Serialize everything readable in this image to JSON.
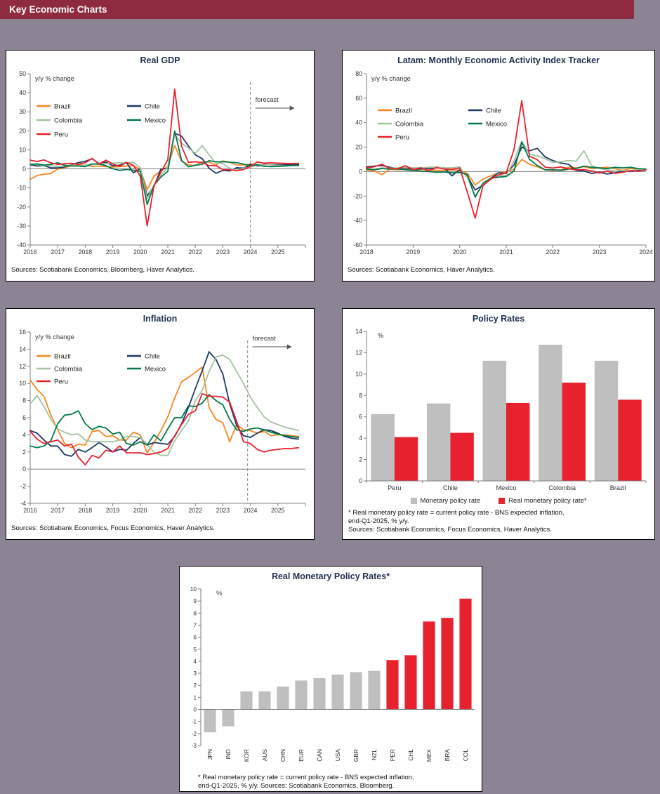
{
  "page": {
    "header_title": "Key Economic Charts",
    "header_color": "#8E2B40",
    "background_color": "#8C8494"
  },
  "colors": {
    "brazil": "#F6871F",
    "chile": "#1F3864",
    "colombia": "#A4C3A0",
    "mexico": "#00794A",
    "peru": "#E8212E",
    "gray_bar": "#BFBFBF",
    "red_bar": "#E8212E",
    "title_text": "#1F3050"
  },
  "chart_data": [
    {
      "id": "real-gdp",
      "type": "line",
      "title": "Real GDP",
      "unit_label": "y/y % change",
      "sources": "Sources: Scotiabank Economics, Bloomberg, Haver Analytics.",
      "forecast_label": "forecast",
      "forecast_x": 2024.0,
      "x_min": 2016,
      "x_max": 2026,
      "x_start": 2016.0,
      "x_step": 0.25,
      "y_min": -40,
      "y_max": 50,
      "y_step": 10,
      "x_ticks": [
        2016,
        2017,
        2018,
        2019,
        2020,
        2021,
        2022,
        2023,
        2024,
        2025,
        2026
      ],
      "x_tick_labels": [
        "2016",
        "2017",
        "2018",
        "2019",
        "2020",
        "2021",
        "2022",
        "2023",
        "2024",
        "2025"
      ],
      "series": [
        {
          "name": "Brazil",
          "color_key": "brazil",
          "values": [
            -5.5,
            -3.5,
            -2.8,
            -2.5,
            0.0,
            0.7,
            1.5,
            2.2,
            1.8,
            1.3,
            1.5,
            1.2,
            1.0,
            1.2,
            1.5,
            1.7,
            -0.3,
            -10.9,
            -3.7,
            -1.1,
            1.3,
            12.3,
            4.0,
            2.1,
            1.7,
            3.7,
            3.6,
            1.9,
            4.2,
            3.5,
            2.0,
            2.1,
            2.5,
            1.9,
            2.2,
            2.3,
            2.2,
            2.1,
            2.0,
            2.0
          ]
        },
        {
          "name": "Chile",
          "color_key": "chile",
          "values": [
            2.2,
            1.5,
            1.7,
            0.5,
            0.5,
            1.0,
            2.2,
            3.3,
            4.0,
            5.3,
            2.8,
            3.6,
            1.6,
            1.9,
            3.3,
            -2.1,
            0.2,
            -14.2,
            -9.0,
            0.0,
            0.3,
            18.7,
            17.2,
            12.0,
            7.4,
            5.4,
            0.3,
            -2.3,
            -0.8,
            -1.1,
            0.6,
            0.4,
            2.3,
            1.6,
            2.3,
            2.2,
            2.2,
            2.3,
            2.2,
            2.2
          ]
        },
        {
          "name": "Colombia",
          "color_key": "colombia",
          "values": [
            2.5,
            2.3,
            1.8,
            1.6,
            1.2,
            1.5,
            2.0,
            1.5,
            1.9,
            2.5,
            2.7,
            2.7,
            3.0,
            3.2,
            3.3,
            3.4,
            0.7,
            -15.8,
            -8.4,
            -3.4,
            1.0,
            18.1,
            13.5,
            11.0,
            8.2,
            12.2,
            7.4,
            2.9,
            2.9,
            0.3,
            -0.7,
            0.3,
            0.9,
            2.1,
            2.0,
            2.3,
            2.6,
            2.8,
            2.9,
            3.0
          ]
        },
        {
          "name": "Mexico",
          "color_key": "mexico",
          "values": [
            2.3,
            2.6,
            2.0,
            2.3,
            3.2,
            1.9,
            1.5,
            1.5,
            1.2,
            2.6,
            2.5,
            1.7,
            0.1,
            -0.8,
            -0.3,
            -0.7,
            -1.3,
            -18.7,
            -8.5,
            -4.3,
            -1.3,
            19.9,
            4.5,
            1.1,
            1.9,
            2.4,
            4.3,
            3.7,
            3.8,
            3.5,
            3.3,
            2.5,
            1.6,
            2.2,
            1.3,
            1.2,
            1.3,
            1.5,
            1.7,
            1.8
          ]
        },
        {
          "name": "Peru",
          "color_key": "peru",
          "values": [
            4.6,
            3.9,
            4.7,
            3.2,
            2.3,
            2.7,
            2.9,
            2.4,
            3.2,
            5.5,
            2.5,
            4.6,
            2.6,
            1.3,
            3.4,
            1.9,
            -3.9,
            -29.9,
            -8.8,
            -1.7,
            4.8,
            41.9,
            11.9,
            3.4,
            3.8,
            3.3,
            1.7,
            1.7,
            -0.4,
            -0.5,
            -0.9,
            -0.4,
            1.4,
            3.6,
            3.0,
            3.2,
            3.0,
            2.9,
            2.8,
            2.8
          ]
        }
      ]
    },
    {
      "id": "latam-activity",
      "type": "line",
      "title": "Latam: Monthly Economic Activity Index Tracker",
      "unit_label": "y/y % change",
      "sources": "Sources: Scotiabank Economics, Haver Analytics.",
      "x_min": 2018,
      "x_max": 2024,
      "x_start": 2018.0,
      "x_step": 0.16667,
      "y_min": -60,
      "y_max": 80,
      "y_step": 20,
      "x_ticks": [
        2018,
        2019,
        2020,
        2021,
        2022,
        2023,
        2024
      ],
      "x_tick_labels": [
        "2018",
        "2019",
        "2020",
        "2021",
        "2022",
        "2023",
        "2024"
      ],
      "series": [
        {
          "name": "Brazil",
          "color_key": "brazil",
          "values": [
            1.5,
            0.5,
            -2.5,
            2.0,
            1.5,
            2.0,
            1.0,
            2.0,
            1.5,
            1.0,
            1.0,
            1.5,
            1.0,
            -1.5,
            -11.0,
            -6.0,
            -3.5,
            -1.0,
            -0.5,
            2.0,
            10.0,
            6.0,
            4.0,
            1.5,
            1.0,
            1.5,
            3.5,
            3.0,
            4.0,
            2.5,
            3.0,
            3.5,
            2.5,
            1.0,
            2.5,
            2.0,
            1.5
          ]
        },
        {
          "name": "Chile",
          "color_key": "chile",
          "values": [
            3.8,
            4.5,
            5.0,
            3.5,
            2.5,
            3.0,
            2.0,
            2.2,
            2.5,
            3.0,
            3.2,
            -3.5,
            1.5,
            -4.0,
            -15.0,
            -11.0,
            -5.5,
            -1.0,
            -1.5,
            5.5,
            20.0,
            17.0,
            19.0,
            12.0,
            9.0,
            7.0,
            6.0,
            1.0,
            0.5,
            -1.5,
            -0.5,
            -2.0,
            -1.0,
            0.5,
            0.0,
            1.0,
            2.0
          ]
        },
        {
          "name": "Colombia",
          "color_key": "colombia",
          "values": [
            2.5,
            2.0,
            3.0,
            2.8,
            3.0,
            3.5,
            3.2,
            3.0,
            3.5,
            3.8,
            3.0,
            3.2,
            3.8,
            -5.0,
            -20.0,
            -10.0,
            -6.0,
            -3.0,
            -3.5,
            9.0,
            25.0,
            14.0,
            13.0,
            10.5,
            7.5,
            8.0,
            9.0,
            8.5,
            17.0,
            5.0,
            2.5,
            1.5,
            0.5,
            1.0,
            0.5,
            2.0,
            1.5
          ]
        },
        {
          "name": "Mexico",
          "color_key": "mexico",
          "values": [
            2.0,
            1.5,
            2.5,
            2.0,
            2.2,
            1.5,
            1.0,
            0.5,
            0.0,
            -0.5,
            -0.3,
            -1.0,
            -0.8,
            -2.5,
            -21.0,
            -9.5,
            -5.5,
            -4.5,
            -4.0,
            0.5,
            24.0,
            10.0,
            5.0,
            1.5,
            1.5,
            1.0,
            2.0,
            2.5,
            4.5,
            3.5,
            3.0,
            2.5,
            3.5,
            3.0,
            3.5,
            2.5,
            2.0
          ]
        },
        {
          "name": "Peru",
          "color_key": "peru",
          "values": [
            3.0,
            4.0,
            6.0,
            2.5,
            2.3,
            4.8,
            1.6,
            3.2,
            0.5,
            3.3,
            2.2,
            1.9,
            3.0,
            -17.0,
            -38.0,
            -11.5,
            -6.2,
            -2.8,
            -1.0,
            18.0,
            58.0,
            12.5,
            9.7,
            3.7,
            2.9,
            3.8,
            2.3,
            1.4,
            1.7,
            0.6,
            -1.2,
            0.3,
            -1.4,
            -0.6,
            0.8,
            0.3,
            1.4
          ]
        }
      ]
    },
    {
      "id": "inflation",
      "type": "line",
      "title": "Inflation",
      "unit_label": "y/y % change",
      "sources": "Sources: Scotiabank Economics, Focus Economics, Haver Analytics.",
      "forecast_label": "forecast",
      "forecast_x": 2023.9,
      "x_min": 2016,
      "x_max": 2026,
      "x_start": 2016.0,
      "x_step": 0.25,
      "y_min": -4,
      "y_max": 16,
      "y_step": 2,
      "x_ticks": [
        2016,
        2017,
        2018,
        2019,
        2020,
        2021,
        2022,
        2023,
        2024,
        2025,
        2026
      ],
      "x_tick_labels": [
        "2016",
        "2017",
        "2018",
        "2019",
        "2020",
        "2021",
        "2022",
        "2023",
        "2024",
        "2025"
      ],
      "series": [
        {
          "name": "Brazil",
          "color_key": "brazil",
          "values": [
            10.4,
            9.3,
            8.5,
            6.3,
            4.6,
            3.0,
            2.5,
            2.9,
            2.8,
            4.4,
            4.5,
            3.8,
            3.9,
            3.4,
            3.4,
            4.3,
            4.0,
            1.9,
            3.1,
            4.5,
            6.1,
            8.3,
            10.2,
            10.7,
            11.3,
            11.9,
            7.2,
            5.8,
            5.4,
            3.2,
            5.2,
            4.6,
            4.5,
            4.2,
            4.4,
            3.9,
            4.0,
            4.0,
            3.9,
            3.8
          ]
        },
        {
          "name": "Chile",
          "color_key": "chile",
          "values": [
            4.5,
            4.2,
            3.4,
            2.7,
            2.7,
            1.7,
            1.5,
            2.3,
            2.0,
            2.5,
            3.1,
            2.6,
            2.0,
            2.3,
            2.2,
            3.0,
            3.7,
            2.8,
            3.1,
            3.0,
            2.9,
            3.8,
            5.3,
            7.2,
            9.4,
            11.5,
            13.7,
            12.8,
            11.1,
            7.6,
            5.1,
            3.9,
            3.7,
            4.2,
            4.6,
            4.5,
            4.2,
            3.8,
            3.6,
            3.5
          ]
        },
        {
          "name": "Colombia",
          "color_key": "colombia",
          "values": [
            7.6,
            8.6,
            7.3,
            5.8,
            4.7,
            4.3,
            4.0,
            4.1,
            3.4,
            3.2,
            3.2,
            3.2,
            3.2,
            3.4,
            3.8,
            3.8,
            3.7,
            2.9,
            2.0,
            1.6,
            1.6,
            3.3,
            4.5,
            5.6,
            8.0,
            9.2,
            11.4,
            13.1,
            13.3,
            12.8,
            11.4,
            10.0,
            8.4,
            7.2,
            6.1,
            5.5,
            5.2,
            4.9,
            4.7,
            4.5
          ]
        },
        {
          "name": "Mexico",
          "color_key": "mexico",
          "values": [
            2.7,
            2.5,
            2.7,
            3.3,
            5.3,
            6.3,
            6.4,
            6.8,
            5.3,
            4.6,
            5.0,
            4.8,
            4.1,
            4.3,
            3.0,
            2.8,
            3.2,
            2.8,
            4.0,
            3.3,
            4.7,
            6.0,
            6.0,
            7.4,
            7.3,
            7.7,
            8.7,
            8.0,
            7.5,
            5.8,
            4.6,
            4.4,
            4.7,
            4.8,
            4.6,
            4.3,
            4.1,
            3.9,
            3.8,
            3.7
          ]
        },
        {
          "name": "Peru",
          "color_key": "peru",
          "values": [
            4.4,
            3.5,
            3.0,
            3.2,
            3.4,
            2.7,
            2.9,
            1.4,
            0.5,
            1.6,
            1.3,
            2.2,
            2.0,
            2.7,
            1.9,
            1.9,
            1.9,
            1.7,
            1.8,
            2.0,
            2.4,
            3.9,
            5.2,
            6.4,
            6.8,
            8.8,
            8.5,
            8.5,
            8.4,
            7.8,
            5.6,
            3.2,
            3.0,
            2.3,
            2.0,
            2.2,
            2.3,
            2.4,
            2.4,
            2.5
          ]
        }
      ]
    },
    {
      "id": "policy-rates",
      "type": "grouped_bar",
      "title": "Policy Rates",
      "unit_label": "%",
      "y_min": 0,
      "y_max": 14,
      "y_step": 2,
      "categories": [
        "Peru",
        "Chile",
        "Mexico",
        "Colombia",
        "Brazil"
      ],
      "series": [
        {
          "name": "Monetary policy rate",
          "color_key": "gray_bar",
          "values": [
            6.25,
            7.25,
            11.25,
            12.75,
            11.25
          ]
        },
        {
          "name": "Real monetary policy rate*",
          "color_key": "red_bar",
          "values": [
            4.1,
            4.5,
            7.3,
            9.2,
            7.6
          ]
        }
      ],
      "footnote_lines": [
        "* Real monetary policy rate = current policy rate - BNS expected inflation,",
        "end-Q1-2025, % y/y.",
        "Sources: Scotiabank Economics, Focus Economics, Haver Analytics."
      ]
    },
    {
      "id": "real-monetary-policy-rates",
      "type": "bar",
      "title": "Real Monetary Policy Rates*",
      "unit_label": "%",
      "y_min": -3,
      "y_max": 10,
      "y_step": 1,
      "categories": [
        "JPN",
        "IND",
        "KOR",
        "AUS",
        "CHN",
        "EUR",
        "CAN",
        "USA",
        "GBR",
        "NZL",
        "PER",
        "CHL",
        "MEX",
        "BRA",
        "COL"
      ],
      "values": [
        -1.9,
        -1.4,
        1.5,
        1.5,
        1.9,
        2.4,
        2.6,
        2.9,
        3.1,
        3.2,
        4.1,
        4.5,
        7.3,
        7.6,
        9.2
      ],
      "bar_colors": [
        "gray_bar",
        "gray_bar",
        "gray_bar",
        "gray_bar",
        "gray_bar",
        "gray_bar",
        "gray_bar",
        "gray_bar",
        "gray_bar",
        "gray_bar",
        "red_bar",
        "red_bar",
        "red_bar",
        "red_bar",
        "red_bar"
      ],
      "footnote_lines": [
        "* Real monetary policy rate = current policy rate - BNS expected inflation,",
        "end-Q1-2025, % y/y. Sources: Scotiabank Economics, Bloomberg."
      ]
    }
  ]
}
